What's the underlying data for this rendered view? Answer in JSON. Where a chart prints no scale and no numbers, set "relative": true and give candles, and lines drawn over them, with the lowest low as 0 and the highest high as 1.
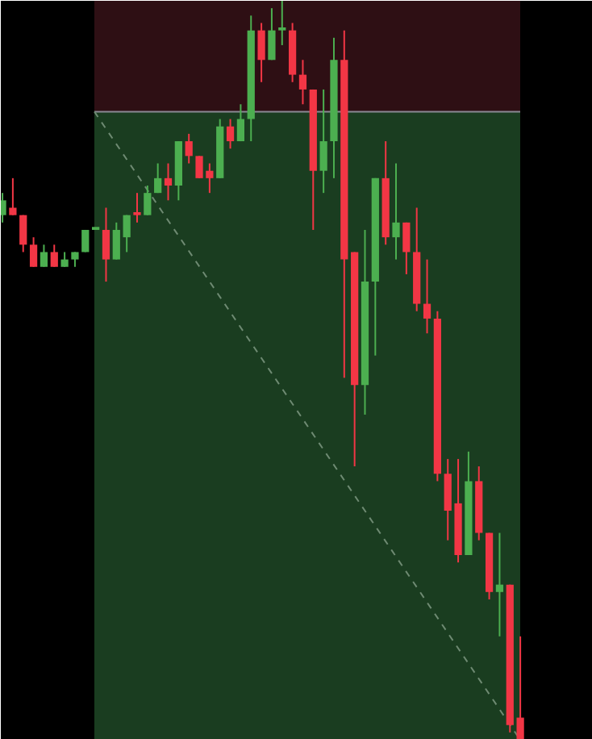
{
  "chart_data": {
    "type": "candlestick",
    "relative": true,
    "tick_labels": false,
    "bands": [
      {
        "axis": "y",
        "from": 0.85,
        "to": 1.0,
        "color": "#2e0f14"
      },
      {
        "axis": "y",
        "from": 0,
        "to": 0.85,
        "color": "#1a3d20"
      }
    ],
    "ref_lines": [
      {
        "axis": "y",
        "value": 0.85,
        "color": "#8a8a93",
        "line_style": "solid"
      }
    ],
    "categories": [
      null,
      null,
      null,
      null,
      null,
      null,
      null,
      null,
      null,
      null,
      null,
      null,
      null,
      null,
      null,
      null,
      null,
      null,
      null,
      null,
      null,
      null,
      null,
      null,
      null,
      null,
      null,
      null,
      null,
      null,
      null,
      null,
      null,
      null,
      null,
      null,
      null,
      null,
      null,
      null,
      null,
      null,
      null,
      null,
      null,
      null,
      null,
      null,
      null,
      null,
      null
    ],
    "ohlc": [
      [
        0.71,
        0.74,
        0.7,
        0.73
      ],
      [
        0.72,
        0.76,
        0.71,
        0.71
      ],
      [
        0.71,
        0.71,
        0.66,
        0.67
      ],
      [
        0.67,
        0.68,
        0.64,
        0.64
      ],
      [
        0.64,
        0.67,
        0.64,
        0.66
      ],
      [
        0.66,
        0.67,
        0.64,
        0.64
      ],
      [
        0.64,
        0.66,
        0.64,
        0.65
      ],
      [
        0.65,
        0.66,
        0.64,
        0.66
      ],
      [
        0.66,
        0.69,
        0.66,
        0.69
      ],
      [
        0.69,
        0.69,
        0.69,
        0.69
      ],
      [
        0.69,
        0.72,
        0.62,
        0.65
      ],
      [
        0.65,
        0.7,
        0.65,
        0.69
      ],
      [
        0.68,
        0.71,
        0.66,
        0.71
      ],
      [
        0.71,
        0.74,
        0.7,
        0.71
      ],
      [
        0.71,
        0.75,
        0.71,
        0.74
      ],
      [
        0.74,
        0.78,
        0.74,
        0.76
      ],
      [
        0.76,
        0.78,
        0.73,
        0.75
      ],
      [
        0.75,
        0.81,
        0.73,
        0.81
      ],
      [
        0.81,
        0.82,
        0.78,
        0.79
      ],
      [
        0.79,
        0.79,
        0.76,
        0.76
      ],
      [
        0.77,
        0.78,
        0.74,
        0.76
      ],
      [
        0.76,
        0.84,
        0.76,
        0.83
      ],
      [
        0.83,
        0.84,
        0.8,
        0.81
      ],
      [
        0.81,
        0.86,
        0.81,
        0.84
      ],
      [
        0.84,
        0.98,
        0.81,
        0.96
      ],
      [
        0.96,
        0.97,
        0.89,
        0.92
      ],
      [
        0.92,
        0.99,
        0.92,
        0.96
      ],
      [
        0.96,
        1.0,
        0.94,
        0.96
      ],
      [
        0.96,
        0.97,
        0.89,
        0.9
      ],
      [
        0.9,
        0.92,
        0.86,
        0.88
      ],
      [
        0.88,
        0.88,
        0.69,
        0.77
      ],
      [
        0.77,
        0.88,
        0.74,
        0.81
      ],
      [
        0.81,
        0.95,
        0.76,
        0.92
      ],
      [
        0.92,
        0.96,
        0.49,
        0.65
      ],
      [
        0.66,
        0.66,
        0.37,
        0.48
      ],
      [
        0.48,
        0.69,
        0.44,
        0.62
      ],
      [
        0.62,
        0.76,
        0.52,
        0.76
      ],
      [
        0.76,
        0.81,
        0.67,
        0.68
      ],
      [
        0.68,
        0.78,
        0.65,
        0.7
      ],
      [
        0.7,
        0.7,
        0.63,
        0.66
      ],
      [
        0.66,
        0.72,
        0.58,
        0.59
      ],
      [
        0.59,
        0.65,
        0.55,
        0.57
      ],
      [
        0.57,
        0.58,
        0.35,
        0.36
      ],
      [
        0.36,
        0.38,
        0.27,
        0.31
      ],
      [
        0.32,
        0.38,
        0.24,
        0.25
      ],
      [
        0.25,
        0.39,
        0.25,
        0.35
      ],
      [
        0.35,
        0.37,
        0.27,
        0.28
      ],
      [
        0.28,
        0.28,
        0.19,
        0.2
      ],
      [
        0.2,
        0.28,
        0.14,
        0.21
      ],
      [
        0.21,
        0.21,
        0.01,
        0.02
      ],
      [
        0.03,
        0.14,
        0,
        0
      ]
    ],
    "colors": [
      "#4caf50",
      "#f23645",
      "#f23645",
      "#f23645",
      "#4caf50",
      "#f23645",
      "#4caf50",
      "#4caf50",
      "#4caf50",
      "#4caf50",
      "#f23645",
      "#4caf50",
      "#4caf50",
      "#f23645",
      "#4caf50",
      "#4caf50",
      "#f23645",
      "#4caf50",
      "#f23645",
      "#f23645",
      "#f23645",
      "#4caf50",
      "#f23645",
      "#4caf50",
      "#4caf50",
      "#f23645",
      "#4caf50",
      "#4caf50",
      "#f23645",
      "#f23645",
      "#f23645",
      "#4caf50",
      "#4caf50",
      "#f23645",
      "#f23645",
      "#4caf50",
      "#4caf50",
      "#f23645",
      "#4caf50",
      "#f23645",
      "#f23645",
      "#f23645",
      "#f23645",
      "#f23645",
      "#f23645",
      "#4caf50",
      "#f23645",
      "#f23645",
      "#4caf50",
      "#f23645",
      "#f23645"
    ]
  }
}
